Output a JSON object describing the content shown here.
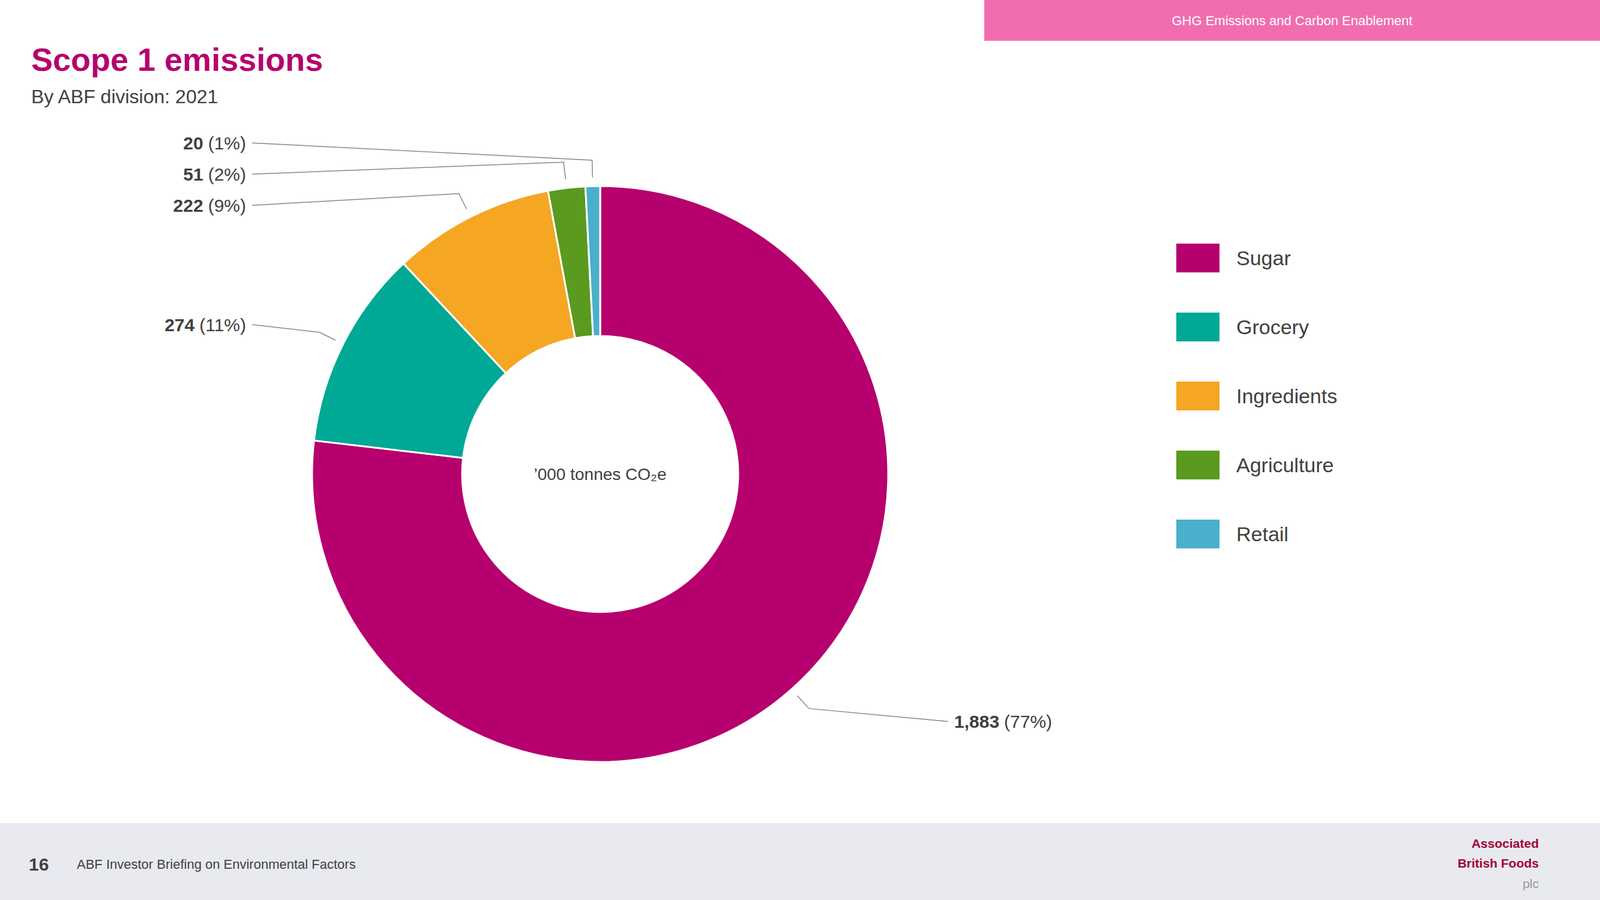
{
  "chart_data": {
    "type": "donut",
    "title": "Scope 1 emissions",
    "subtitle": "By ABF division: 2021",
    "center_label": "’000 tonnes CO₂e",
    "header_tag": "GHG Emissions and Carbon Enablement",
    "page_number": "16",
    "footer_text": "ABF Investor Briefing on Environmental Factors",
    "logo": [
      "Associated",
      "British Foods",
      "plc"
    ],
    "categories": [
      "Sugar",
      "Grocery",
      "Ingredients",
      "Agriculture",
      "Retail"
    ],
    "values": [
      1883,
      274,
      222,
      51,
      20
    ],
    "value_labels": [
      "1,883",
      "274",
      "222",
      "51",
      "20"
    ],
    "percentage_labels": [
      "(77%)",
      "(11%)",
      "(9%)",
      "(2%)",
      "(1%)"
    ],
    "colors": [
      "#B5006E",
      "#00A896",
      "#F5A623",
      "#5A9A1F",
      "#4AAFCB"
    ],
    "data_labels": true,
    "legend": "right"
  }
}
